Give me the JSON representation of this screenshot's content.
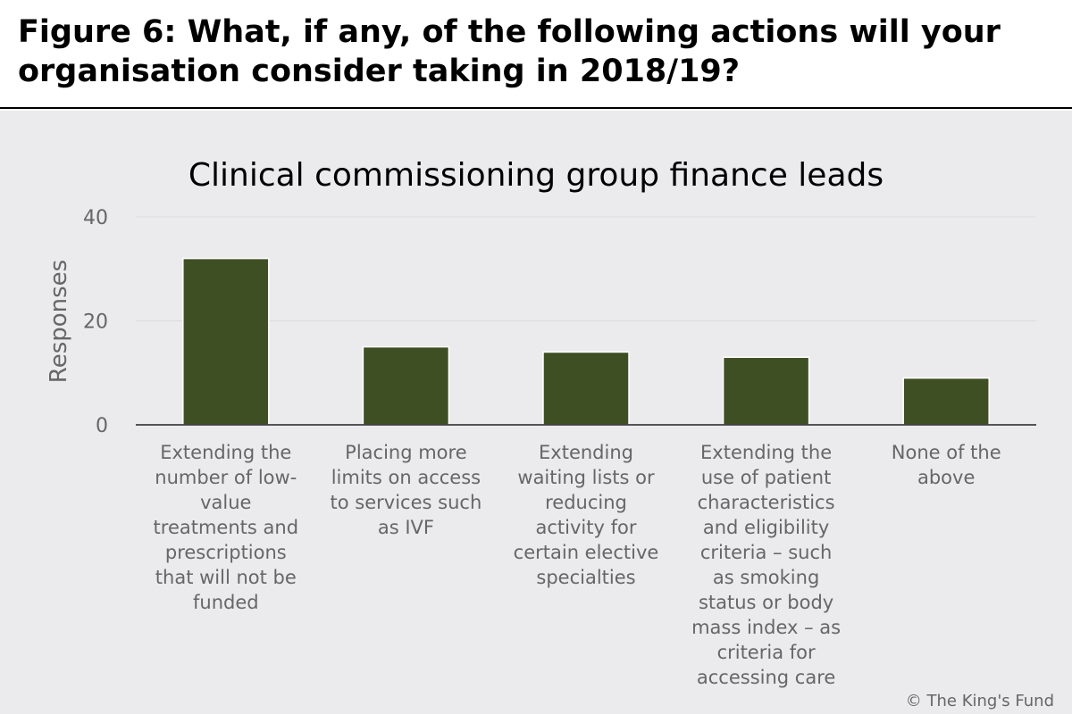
{
  "figure_title": "Figure 6: What, if any, of the following actions will your organisation consider taking in 2018/19?",
  "copyright": "© The King's Fund",
  "colors": {
    "bar": "#3f4f24",
    "background": "#ebebee",
    "text": "#666666",
    "grid": "#dcdcdf"
  },
  "chart_data": {
    "type": "bar",
    "title": "Clinical commissioning group finance leads",
    "ylabel": "Responses",
    "xlabel": "",
    "ylim": [
      0,
      40
    ],
    "yticks": [
      0,
      20,
      40
    ],
    "grid": true,
    "categories": [
      "Extending the number of low-value treatments and prescriptions that will not be funded",
      "Placing more limits on access to services such as IVF",
      "Extending waiting lists or reducing activity for certain elective specialties",
      "Extending the use of patient characteristics and eligibility criteria – such as smoking status or body mass index – as criteria for accessing care",
      "None of the above"
    ],
    "category_lines": [
      [
        "Extending the",
        "number of low-",
        "value",
        "treatments and",
        "prescriptions",
        "that will not be",
        "funded"
      ],
      [
        "Placing more",
        "limits on access",
        "to services such",
        "as IVF"
      ],
      [
        "Extending",
        "waiting lists or",
        "reducing",
        "activity for",
        "certain elective",
        "specialties"
      ],
      [
        "Extending the",
        "use of patient",
        "characteristics",
        "and eligibility",
        "criteria – such",
        "as smoking",
        "status or body",
        "mass index – as",
        "criteria for",
        "accessing care"
      ],
      [
        "None of the",
        "above"
      ]
    ],
    "values": [
      32,
      15,
      14,
      13,
      9
    ]
  }
}
